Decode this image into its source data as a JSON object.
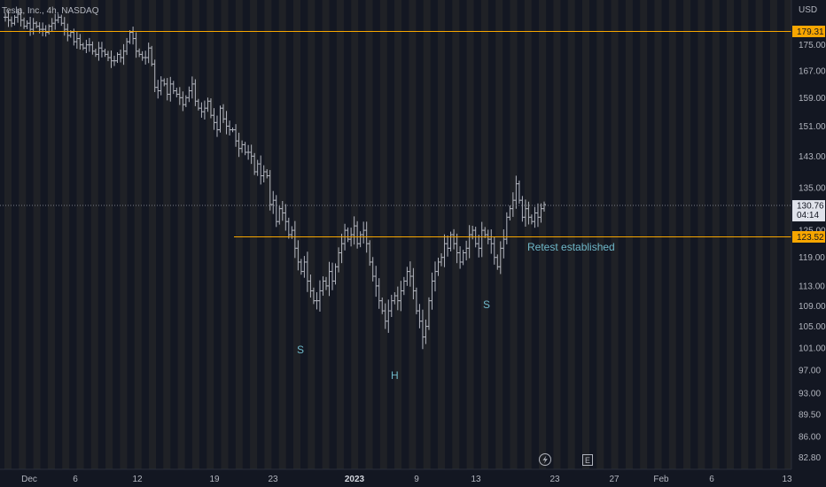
{
  "header": {
    "symbol_title": "Tesla, Inc., 4h, NASDAQ"
  },
  "axis": {
    "currency": "USD"
  },
  "icons": {
    "flash": "lightning-icon",
    "earnings": "earnings-e-icon"
  },
  "colors": {
    "background": "#131722",
    "stripe": "#2a2a2a",
    "candle": "#b2b5be",
    "level_line": "#f7a600",
    "last_price_line": "#787b86",
    "pattern_text": "#6fb8c9"
  },
  "chart_data": {
    "type": "ohlc",
    "title": "Tesla, Inc., 4h, NASDAQ",
    "ylabel": "USD",
    "ylim": [
      81.5,
      190
    ],
    "yscale": "log",
    "grid": false,
    "y_ticks": [
      "175.00",
      "167.00",
      "159.00",
      "151.00",
      "143.00",
      "135.00",
      "125.00",
      "119.00",
      "113.00",
      "109.00",
      "105.00",
      "101.00",
      "97.00",
      "93.00",
      "89.50",
      "86.00",
      "82.80"
    ],
    "x_ticks": [
      "Dec",
      "6",
      "12",
      "19",
      "23",
      "2023",
      "9",
      "13",
      "23",
      "27",
      "Feb",
      "6",
      "13"
    ],
    "bold_x_tick": "2023",
    "levels": [
      {
        "name": "resistance",
        "value": 179.31,
        "label": "179.31"
      },
      {
        "name": "neckline",
        "value": 123.52,
        "label": "123.52"
      }
    ],
    "last_price": {
      "value": 130.76,
      "label": "130.76",
      "countdown": "04:14"
    },
    "annotations": [
      {
        "name": "left-shoulder",
        "text": "S"
      },
      {
        "name": "head",
        "text": "H"
      },
      {
        "name": "right-shoulder",
        "text": "S"
      },
      {
        "name": "retest",
        "text": "Retest established"
      }
    ],
    "closes": [
      184,
      183,
      182,
      184,
      185,
      183,
      181,
      182,
      180,
      182,
      181,
      180,
      180,
      179,
      181,
      182,
      183,
      184,
      182,
      180,
      178,
      179,
      176,
      177,
      175,
      174,
      175,
      175,
      173,
      172,
      174,
      173,
      172,
      171,
      170,
      170,
      172,
      171,
      173,
      176,
      179,
      177,
      173,
      172,
      171,
      171,
      174,
      169,
      162,
      161,
      164,
      163,
      160,
      163,
      161,
      160,
      159,
      157,
      159,
      161,
      163,
      158,
      156,
      155,
      156,
      158,
      154,
      152,
      150,
      156,
      153,
      151,
      150,
      150,
      147,
      145,
      146,
      144,
      144,
      143,
      139,
      141,
      138,
      139,
      138,
      131,
      132,
      127,
      130,
      129,
      127,
      124,
      125,
      121,
      118,
      116,
      118,
      114,
      112,
      110,
      110,
      112,
      114,
      113,
      116,
      114,
      117,
      120,
      122,
      125,
      123,
      124,
      126,
      122,
      124,
      125,
      122,
      118,
      115,
      113,
      110,
      108,
      106,
      108,
      110,
      111,
      110,
      112,
      114,
      116,
      115,
      112,
      108,
      106,
      103,
      105,
      110,
      114,
      116,
      118,
      119,
      122,
      121,
      124,
      122,
      120,
      118,
      120,
      121,
      124,
      125,
      122,
      121,
      125,
      124,
      123,
      122,
      119,
      117,
      121,
      123,
      128,
      130,
      132,
      136,
      132,
      128,
      130,
      128,
      127,
      129,
      128,
      130,
      131
    ]
  }
}
